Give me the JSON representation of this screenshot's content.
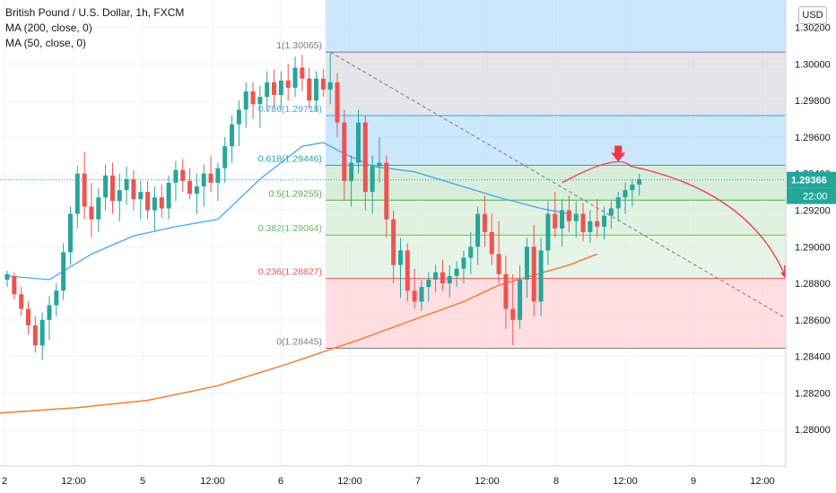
{
  "header": {
    "symbol_line": "British Pound / U.S. Dollar, 1h, FXCM",
    "ma200_label": "MA (200, close, 0)",
    "ma50_label": "MA (50, close, 0)"
  },
  "currency_button": "USD",
  "price_axis": {
    "labels": [
      "1.28000",
      "1.28200",
      "1.28400",
      "1.28600",
      "1.28800",
      "1.29000",
      "1.29200",
      "1.29400",
      "1.29600",
      "1.29800",
      "1.30000",
      "1.30200"
    ],
    "current_price": "1.29366",
    "countdown": "22:00"
  },
  "time_axis": {
    "labels": [
      "2",
      "12:00",
      "5",
      "12:00",
      "6",
      "12:00",
      "7",
      "12:00",
      "8",
      "12:00",
      "9",
      "12:00"
    ]
  },
  "colors": {
    "bull": "#26a69a",
    "bear": "#ef5350",
    "ma50": "#42a5f5",
    "ma200": "#f57c33",
    "fib_1": "#787b86",
    "fib_0786": "#42a5f5",
    "fib_0618": "#26a69a",
    "fib_05": "#4caf50",
    "fib_0382": "#66bb6a",
    "fib_0236": "#ef5350",
    "fib_0": "#787b86",
    "arrow": "#f23645"
  },
  "fibonacci": [
    {
      "label": "1(1.30065)",
      "level": 1.30065
    },
    {
      "label": "0.786(1.29718)",
      "level": 1.29718
    },
    {
      "label": "0.618(1.29446)",
      "level": 1.29446
    },
    {
      "label": "0.5(1.29255)",
      "level": 1.29255
    },
    {
      "label": "0.382(1.29064)",
      "level": 1.29064
    },
    {
      "label": "0.236(1.28827)",
      "level": 1.28827
    },
    {
      "label": "0(1.28445)",
      "level": 1.28445
    }
  ],
  "chart_data": {
    "type": "candlestick",
    "ylim": [
      1.278,
      1.3035
    ],
    "candles": [
      [
        1.2882,
        1.2887,
        1.2878,
        1.2885
      ],
      [
        1.2884,
        1.2886,
        1.2871,
        1.2874
      ],
      [
        1.2874,
        1.2878,
        1.2862,
        1.2866
      ],
      [
        1.2866,
        1.287,
        1.2852,
        1.2857
      ],
      [
        1.2857,
        1.2862,
        1.2842,
        1.2846
      ],
      [
        1.2846,
        1.2864,
        1.2838,
        1.286
      ],
      [
        1.286,
        1.2873,
        1.2849,
        1.2868
      ],
      [
        1.2868,
        1.288,
        1.2862,
        1.2876
      ],
      [
        1.2876,
        1.2902,
        1.2871,
        1.2897
      ],
      [
        1.2897,
        1.2922,
        1.289,
        1.2918
      ],
      [
        1.2918,
        1.2944,
        1.291,
        1.294
      ],
      [
        1.294,
        1.2952,
        1.2915,
        1.2922
      ],
      [
        1.2922,
        1.2935,
        1.2905,
        1.2915
      ],
      [
        1.2915,
        1.2932,
        1.2908,
        1.2927
      ],
      [
        1.2927,
        1.2945,
        1.292,
        1.2939
      ],
      [
        1.2939,
        1.2946,
        1.2918,
        1.2925
      ],
      [
        1.2925,
        1.294,
        1.2914,
        1.2931
      ],
      [
        1.2931,
        1.2944,
        1.2923,
        1.2937
      ],
      [
        1.2937,
        1.2942,
        1.292,
        1.2926
      ],
      [
        1.2926,
        1.2936,
        1.2915,
        1.293
      ],
      [
        1.293,
        1.2936,
        1.2915,
        1.292
      ],
      [
        1.292,
        1.2933,
        1.2909,
        1.2927
      ],
      [
        1.2927,
        1.2934,
        1.2916,
        1.2921
      ],
      [
        1.2921,
        1.2939,
        1.2915,
        1.2935
      ],
      [
        1.2935,
        1.2947,
        1.2925,
        1.2942
      ],
      [
        1.2942,
        1.2948,
        1.293,
        1.2936
      ],
      [
        1.2936,
        1.2943,
        1.2926,
        1.2929
      ],
      [
        1.2929,
        1.294,
        1.2918,
        1.2933
      ],
      [
        1.2933,
        1.2945,
        1.2922,
        1.294
      ],
      [
        1.294,
        1.295,
        1.293,
        1.2935
      ],
      [
        1.2935,
        1.2946,
        1.2925,
        1.2943
      ],
      [
        1.2943,
        1.296,
        1.2935,
        1.2955
      ],
      [
        1.2955,
        1.2972,
        1.2946,
        1.2967
      ],
      [
        1.2967,
        1.298,
        1.2955,
        1.2975
      ],
      [
        1.2975,
        1.299,
        1.2965,
        1.2985
      ],
      [
        1.2985,
        1.299,
        1.297,
        1.2978
      ],
      [
        1.2978,
        1.2988,
        1.2965,
        1.2982
      ],
      [
        1.2982,
        1.2996,
        1.2974,
        1.299
      ],
      [
        1.299,
        1.2997,
        1.2976,
        1.2983
      ],
      [
        1.2983,
        1.2996,
        1.2975,
        1.2991
      ],
      [
        1.2991,
        1.3,
        1.298,
        1.2987
      ],
      [
        1.2987,
        1.3004,
        1.2982,
        1.2998
      ],
      [
        1.2998,
        1.3005,
        1.2985,
        1.2992
      ],
      [
        1.2992,
        1.2998,
        1.2975,
        1.298
      ],
      [
        1.298,
        1.2996,
        1.2974,
        1.2992
      ],
      [
        1.2992,
        1.2997,
        1.2982,
        1.2986
      ],
      [
        1.2986,
        1.3006,
        1.2978,
        1.299
      ],
      [
        1.299,
        1.2995,
        1.296,
        1.2968
      ],
      [
        1.2968,
        1.2975,
        1.2925,
        1.2936
      ],
      [
        1.2936,
        1.295,
        1.2922,
        1.2946
      ],
      [
        1.2946,
        1.2975,
        1.294,
        1.2968
      ],
      [
        1.2968,
        1.2972,
        1.292,
        1.293
      ],
      [
        1.293,
        1.295,
        1.2918,
        1.2944
      ],
      [
        1.2944,
        1.296,
        1.2935,
        1.2946
      ],
      [
        1.2946,
        1.295,
        1.2905,
        1.2915
      ],
      [
        1.2915,
        1.292,
        1.288,
        1.289
      ],
      [
        1.289,
        1.2905,
        1.2872,
        1.2898
      ],
      [
        1.2898,
        1.2902,
        1.287,
        1.2876
      ],
      [
        1.2876,
        1.2888,
        1.2866,
        1.287
      ],
      [
        1.287,
        1.2882,
        1.2865,
        1.2878
      ],
      [
        1.2878,
        1.2886,
        1.287,
        1.2882
      ],
      [
        1.2882,
        1.289,
        1.2875,
        1.2886
      ],
      [
        1.2886,
        1.2893,
        1.2876,
        1.288
      ],
      [
        1.288,
        1.289,
        1.2872,
        1.2884
      ],
      [
        1.2884,
        1.2892,
        1.2878,
        1.2888
      ],
      [
        1.2888,
        1.2898,
        1.288,
        1.2894
      ],
      [
        1.2894,
        1.2908,
        1.2885,
        1.29
      ],
      [
        1.29,
        1.2922,
        1.289,
        1.2918
      ],
      [
        1.2918,
        1.2928,
        1.29,
        1.2908
      ],
      [
        1.2908,
        1.2918,
        1.289,
        1.2896
      ],
      [
        1.2896,
        1.2914,
        1.288,
        1.2885
      ],
      [
        1.2885,
        1.2895,
        1.2855,
        1.2866
      ],
      [
        1.2866,
        1.2885,
        1.2846,
        1.286
      ],
      [
        1.286,
        1.289,
        1.2855,
        1.2882
      ],
      [
        1.2882,
        1.2905,
        1.2872,
        1.29
      ],
      [
        1.29,
        1.2912,
        1.2862,
        1.287
      ],
      [
        1.287,
        1.2905,
        1.2862,
        1.2898
      ],
      [
        1.2898,
        1.2925,
        1.289,
        1.2918
      ],
      [
        1.2918,
        1.293,
        1.2905,
        1.291
      ],
      [
        1.291,
        1.2926,
        1.29,
        1.292
      ],
      [
        1.292,
        1.2928,
        1.2908,
        1.2914
      ],
      [
        1.2914,
        1.2925,
        1.2905,
        1.2918
      ],
      [
        1.2918,
        1.2924,
        1.2903,
        1.2908
      ],
      [
        1.2908,
        1.292,
        1.2902,
        1.2914
      ],
      [
        1.2914,
        1.2926,
        1.2905,
        1.2911
      ],
      [
        1.2911,
        1.2922,
        1.2904,
        1.2917
      ],
      [
        1.2917,
        1.2925,
        1.291,
        1.2921
      ],
      [
        1.2921,
        1.293,
        1.2914,
        1.2927
      ],
      [
        1.2927,
        1.2935,
        1.2918,
        1.2931
      ],
      [
        1.2931,
        1.2937,
        1.2922,
        1.2934
      ],
      [
        1.2934,
        1.294,
        1.2928,
        1.2937
      ]
    ],
    "ma50": [
      [
        0,
        1.2884
      ],
      [
        6,
        1.2882
      ],
      [
        12,
        1.2896
      ],
      [
        18,
        1.2906
      ],
      [
        24,
        1.2911
      ],
      [
        30,
        1.2915
      ],
      [
        36,
        1.2937
      ],
      [
        42,
        1.2955
      ],
      [
        45,
        1.2957
      ],
      [
        48,
        1.2951
      ],
      [
        52,
        1.2944
      ],
      [
        58,
        1.2941
      ],
      [
        64,
        1.2934
      ],
      [
        70,
        1.2927
      ],
      [
        76,
        1.2921
      ],
      [
        80,
        1.2918
      ]
    ],
    "ma200": [
      [
        -5,
        1.2808
      ],
      [
        10,
        1.2812
      ],
      [
        20,
        1.2816
      ],
      [
        30,
        1.2824
      ],
      [
        40,
        1.2836
      ],
      [
        50,
        1.2849
      ],
      [
        60,
        1.2863
      ],
      [
        65,
        1.287
      ],
      [
        70,
        1.2879
      ],
      [
        80,
        1.289
      ],
      [
        84,
        1.2896
      ]
    ],
    "projection": {
      "start": [
        79,
        1.2935
      ],
      "peak": [
        87,
        1.2945
      ],
      "end": [
        111,
        1.2882
      ]
    },
    "trendline": {
      "start": [
        46,
        1.30065
      ],
      "end": [
        118,
        1.2845
      ]
    }
  }
}
